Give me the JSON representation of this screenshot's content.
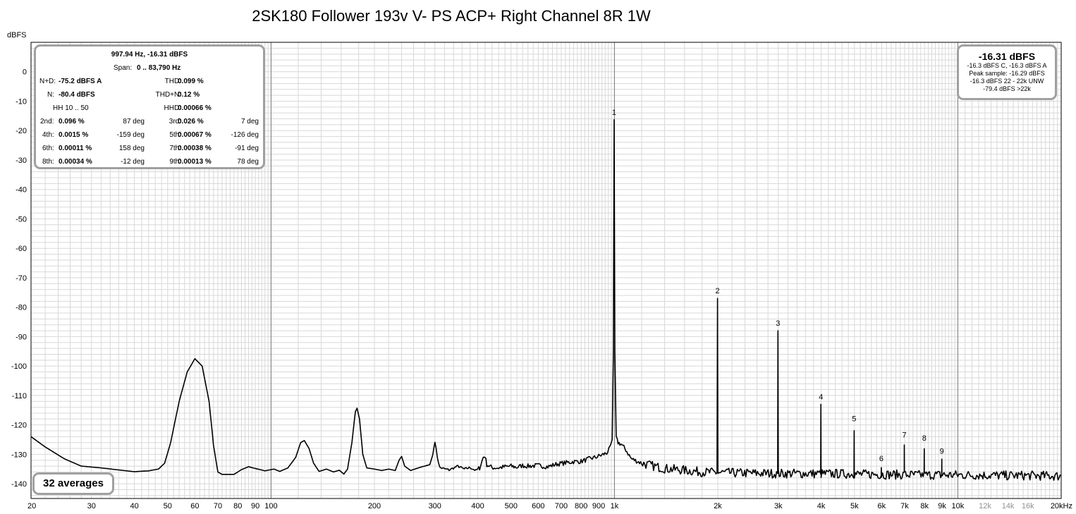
{
  "chart_data": {
    "type": "line",
    "title": "2SK180 Follower 193v V- PS ACP+ Right Channel 8R 1W",
    "ylabel": "dBFS",
    "xlabel": "",
    "x_scale": "log",
    "xlim": [
      20,
      20000
    ],
    "ylim": [
      -145,
      10
    ],
    "grid": true,
    "x_ticks": [
      {
        "v": 20,
        "t": "20"
      },
      {
        "v": 30,
        "t": "30"
      },
      {
        "v": 40,
        "t": "40"
      },
      {
        "v": 50,
        "t": "50"
      },
      {
        "v": 60,
        "t": "60"
      },
      {
        "v": 70,
        "t": "70"
      },
      {
        "v": 80,
        "t": "80"
      },
      {
        "v": 90,
        "t": "90"
      },
      {
        "v": 100,
        "t": "100"
      },
      {
        "v": 200,
        "t": "200"
      },
      {
        "v": 300,
        "t": "300"
      },
      {
        "v": 400,
        "t": "400"
      },
      {
        "v": 500,
        "t": "500"
      },
      {
        "v": 600,
        "t": "600"
      },
      {
        "v": 700,
        "t": "700"
      },
      {
        "v": 800,
        "t": "800"
      },
      {
        "v": 900,
        "t": "900"
      },
      {
        "v": 1000,
        "t": "1k"
      },
      {
        "v": 2000,
        "t": "2k"
      },
      {
        "v": 3000,
        "t": "3k"
      },
      {
        "v": 4000,
        "t": "4k"
      },
      {
        "v": 5000,
        "t": "5k"
      },
      {
        "v": 6000,
        "t": "6k"
      },
      {
        "v": 7000,
        "t": "7k"
      },
      {
        "v": 8000,
        "t": "8k"
      },
      {
        "v": 9000,
        "t": "9k"
      },
      {
        "v": 10000,
        "t": "10k"
      },
      {
        "v": 12000,
        "t": "12k",
        "grey": true
      },
      {
        "v": 14000,
        "t": "14k",
        "grey": true
      },
      {
        "v": 16000,
        "t": "16k",
        "grey": true
      },
      {
        "v": 20000,
        "t": "20kHz"
      }
    ],
    "y_ticks": [
      0,
      -10,
      -20,
      -30,
      -40,
      -50,
      -60,
      -70,
      -80,
      -90,
      -100,
      -110,
      -120,
      -130,
      -140
    ],
    "y_tick_labels": [
      "0",
      "-10",
      "-20",
      "-30",
      "-40",
      "-50",
      "-60",
      "-70",
      "-80",
      "-90",
      "-100",
      "-110",
      "-120",
      "-130",
      "-140"
    ],
    "harmonic_markers": [
      {
        "label": "1",
        "x": 997.94,
        "y": -16.31
      },
      {
        "label": "2",
        "x": 1996,
        "y": -77
      },
      {
        "label": "3",
        "x": 2994,
        "y": -88
      },
      {
        "label": "4",
        "x": 3992,
        "y": -113
      },
      {
        "label": "5",
        "x": 4990,
        "y": -120.5
      },
      {
        "label": "6",
        "x": 5988,
        "y": -134
      },
      {
        "label": "7",
        "x": 6986,
        "y": -126
      },
      {
        "label": "8",
        "x": 7984,
        "y": -127
      },
      {
        "label": "9",
        "x": 8981,
        "y": -131.5
      }
    ],
    "series": [
      {
        "points": [
          [
            20,
            -124
          ],
          [
            22,
            -127.5
          ],
          [
            25,
            -131.5
          ],
          [
            28,
            -134
          ],
          [
            32,
            -134.6
          ],
          [
            36,
            -135.3
          ],
          [
            40,
            -135.9
          ],
          [
            44,
            -135.6
          ],
          [
            47,
            -135
          ],
          [
            49,
            -133
          ],
          [
            51,
            -126
          ],
          [
            54,
            -112
          ],
          [
            57,
            -102
          ],
          [
            60,
            -97.5
          ],
          [
            63,
            -100
          ],
          [
            66,
            -112
          ],
          [
            68,
            -127
          ],
          [
            70,
            -136
          ],
          [
            72,
            -136.8
          ],
          [
            78,
            -136.8
          ],
          [
            82,
            -135.2
          ],
          [
            86,
            -134.2
          ],
          [
            90,
            -134.8
          ],
          [
            96,
            -135.6
          ],
          [
            102,
            -135
          ],
          [
            106,
            -135.8
          ],
          [
            112,
            -134.6
          ],
          [
            118,
            -131
          ],
          [
            122,
            -126
          ],
          [
            125,
            -125.3
          ],
          [
            129,
            -128
          ],
          [
            133,
            -133
          ],
          [
            138,
            -135.8
          ],
          [
            145,
            -135
          ],
          [
            152,
            -136
          ],
          [
            158,
            -135.4
          ],
          [
            163,
            -136.7
          ],
          [
            167,
            -135
          ],
          [
            172,
            -126
          ],
          [
            176,
            -115.5
          ],
          [
            178,
            -114.3
          ],
          [
            181,
            -118
          ],
          [
            185,
            -130
          ],
          [
            190,
            -134.6
          ],
          [
            200,
            -135
          ],
          [
            210,
            -135.5
          ],
          [
            220,
            -135
          ],
          [
            230,
            -135.5
          ],
          [
            236,
            -132
          ],
          [
            240,
            -130.7
          ],
          [
            245,
            -134
          ],
          [
            255,
            -135.5
          ],
          [
            270,
            -134.5
          ],
          [
            290,
            -133.5
          ],
          [
            296,
            -130
          ],
          [
            300,
            -125.5
          ],
          [
            305,
            -131
          ],
          [
            310,
            -134.5
          ],
          [
            330,
            -135.3
          ],
          [
            350,
            -134
          ],
          [
            365,
            -135
          ],
          [
            380,
            -134.5
          ],
          [
            395,
            -135.5
          ],
          [
            405,
            -134.6
          ],
          [
            415,
            -131
          ],
          [
            420,
            -130.6
          ],
          [
            425,
            -133.5
          ],
          [
            440,
            -134.5
          ],
          [
            460,
            -134.6
          ],
          [
            480,
            -134.2
          ],
          [
            500,
            -134
          ],
          [
            520,
            -134.4
          ],
          [
            540,
            -133.8
          ],
          [
            560,
            -134
          ],
          [
            600,
            -133.8
          ],
          [
            640,
            -134.2
          ],
          [
            680,
            -133.3
          ],
          [
            720,
            -132.9
          ],
          [
            760,
            -132.5
          ],
          [
            800,
            -132.4
          ],
          [
            840,
            -131.6
          ],
          [
            880,
            -131
          ],
          [
            920,
            -130.2
          ],
          [
            950,
            -129.5
          ],
          [
            970,
            -128
          ],
          [
            985,
            -125
          ],
          [
            993,
            -95
          ],
          [
            997.94,
            -16.31
          ],
          [
            1003,
            -95
          ],
          [
            1012,
            -124.5
          ],
          [
            1025,
            -126
          ],
          [
            1045,
            -126.5
          ],
          [
            1080,
            -128.5
          ],
          [
            1120,
            -131.5
          ],
          [
            1200,
            -133
          ],
          [
            1300,
            -134
          ],
          [
            1400,
            -134.8
          ],
          [
            1600,
            -135.4
          ],
          [
            1800,
            -136
          ],
          [
            1990,
            -136.2
          ],
          [
            1996,
            -77
          ],
          [
            2002,
            -136.2
          ],
          [
            2200,
            -136.3
          ],
          [
            2500,
            -136.4
          ],
          [
            2988,
            -136.5
          ],
          [
            2994,
            -88
          ],
          [
            3000,
            -136.5
          ],
          [
            3500,
            -136.5
          ],
          [
            3986,
            -136.6
          ],
          [
            3992,
            -113
          ],
          [
            3998,
            -136.6
          ],
          [
            4500,
            -136.6
          ],
          [
            4984,
            -136.7
          ],
          [
            4990,
            -120.5
          ],
          [
            4996,
            -136.7
          ],
          [
            5500,
            -136.8
          ],
          [
            5982,
            -136.8
          ],
          [
            5988,
            -134
          ],
          [
            5994,
            -136.8
          ],
          [
            6500,
            -136.9
          ],
          [
            6980,
            -136.9
          ],
          [
            6986,
            -126
          ],
          [
            6992,
            -136.9
          ],
          [
            7500,
            -137
          ],
          [
            7978,
            -137
          ],
          [
            7984,
            -127
          ],
          [
            7990,
            -137
          ],
          [
            8500,
            -137
          ],
          [
            8975,
            -137
          ],
          [
            8981,
            -131.5
          ],
          [
            8987,
            -137
          ],
          [
            10000,
            -137
          ],
          [
            12000,
            -137.1
          ],
          [
            14000,
            -137.2
          ],
          [
            16000,
            -137.2
          ],
          [
            18000,
            -137.3
          ],
          [
            20000,
            -137.4
          ]
        ]
      }
    ],
    "annotations": {
      "stats": {
        "header": "997.94 Hz, -16.31 dBFS",
        "span_label": "Span:",
        "span_value": "0 .. 83,790 Hz",
        "nd_label": "N+D:",
        "nd_value": "-75.2 dBFS A",
        "thd_label": "THD:",
        "thd_value": "0.099 %",
        "n_label": "N:",
        "n_value": "-80.4 dBFS",
        "thdn_label": "THD+N:",
        "thdn_value": "0.12 %",
        "hh_label": "HH 10 .. 50",
        "hhd_label": "HHD:",
        "hhd_value": "0.00066 %",
        "harmonics": [
          {
            "label": "2nd:",
            "value": "0.096 %",
            "phase": "87 deg"
          },
          {
            "label": "3rd:",
            "value": "0.026 %",
            "phase": "7 deg"
          },
          {
            "label": "4th:",
            "value": "0.0015 %",
            "phase": "-159 deg"
          },
          {
            "label": "5th:",
            "value": "0.00067 %",
            "phase": "-126 deg"
          },
          {
            "label": "6th:",
            "value": "0.00011 %",
            "phase": "158 deg"
          },
          {
            "label": "7th:",
            "value": "0.00038 %",
            "phase": "-91 deg"
          },
          {
            "label": "8th:",
            "value": "0.00034 %",
            "phase": "-12 deg"
          },
          {
            "label": "9th:",
            "value": "0.00013 %",
            "phase": "78 deg"
          }
        ]
      },
      "level": {
        "main": "-16.31 dBFS",
        "lines": [
          "-16.3 dBFS C, -16.3 dBFS A",
          "Peak sample: -16.29 dBFS",
          "-16.3 dBFS 22 - 22k UNW",
          "-79.4 dBFS >22k"
        ]
      },
      "averages": "32 averages"
    },
    "colors": {
      "trace": "#000000",
      "grid_minor": "#d8d8d8",
      "grid_major": "#7a7a7a",
      "panel_border": "#a0a0a0",
      "plot_border": "#000000"
    }
  }
}
